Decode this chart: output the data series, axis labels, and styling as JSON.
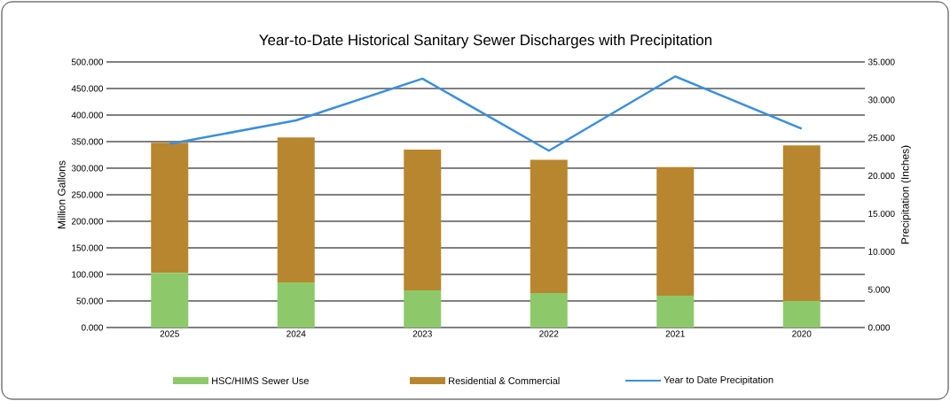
{
  "chart_data": {
    "type": "bar",
    "title": "Year-to-Date Historical Sanitary Sewer Discharges with Precipitation",
    "categories": [
      "2025",
      "2024",
      "2023",
      "2022",
      "2021",
      "2020"
    ],
    "stacked": true,
    "series": [
      {
        "name": "HSC/HIMS Sewer Use",
        "color": "#8dc96a",
        "values": [
          103,
          85,
          70,
          65,
          60,
          50
        ]
      },
      {
        "name": "Residential & Commercial",
        "color": "#b8862e",
        "values": [
          245,
          273,
          265,
          251,
          242,
          293
        ]
      },
      {
        "name": "Year to Date Precipitation",
        "type": "line",
        "axis": "y2",
        "color": "#3a8fdc",
        "values": [
          24.2,
          27.3,
          32.8,
          23.3,
          33.1,
          26.2
        ]
      }
    ],
    "ylabel": "Million Gallons",
    "y2label": "Precipitation (Inches)",
    "ylim": [
      0,
      500
    ],
    "yticks": [
      {
        "value": 0,
        "label": "0.000"
      },
      {
        "value": 50,
        "label": "50.000"
      },
      {
        "value": 100,
        "label": "100.000"
      },
      {
        "value": 150,
        "label": "150.000"
      },
      {
        "value": 200,
        "label": "200.000"
      },
      {
        "value": 250,
        "label": "250.000"
      },
      {
        "value": 300,
        "label": "300.000"
      },
      {
        "value": 350,
        "label": "350.000"
      },
      {
        "value": 400,
        "label": "400.000"
      },
      {
        "value": 450,
        "label": "450.000"
      },
      {
        "value": 500,
        "label": "500.000"
      }
    ],
    "y2lim": [
      0,
      35
    ],
    "y2ticks": [
      {
        "value": 0,
        "label": "0.000"
      },
      {
        "value": 5,
        "label": "5.000"
      },
      {
        "value": 10,
        "label": "10.000"
      },
      {
        "value": 15,
        "label": "15.000"
      },
      {
        "value": 20,
        "label": "20.000"
      },
      {
        "value": 25,
        "label": "25.000"
      },
      {
        "value": 30,
        "label": "30.000"
      },
      {
        "value": 35,
        "label": "35.000"
      }
    ],
    "grid": "y",
    "legend": "bottom"
  }
}
